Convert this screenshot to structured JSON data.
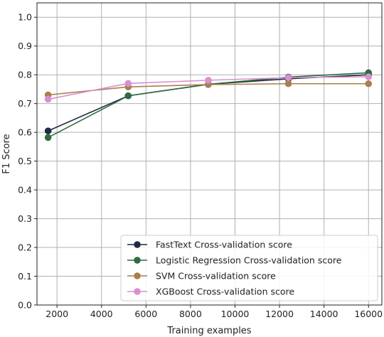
{
  "chart_data": {
    "type": "line",
    "title": "",
    "xlabel": "Training examples",
    "ylabel": "F1 Score",
    "x": [
      1600,
      5200,
      8800,
      12400,
      16000
    ],
    "xlim": [
      1100,
      16600
    ],
    "ylim": [
      0.0,
      1.05
    ],
    "xticks": [
      2000,
      4000,
      6000,
      8000,
      10000,
      12000,
      14000,
      16000
    ],
    "yticks": [
      0.0,
      0.1,
      0.2,
      0.3,
      0.4,
      0.5,
      0.6,
      0.7,
      0.8,
      0.9,
      1.0
    ],
    "xtick_labels": [
      "2000",
      "4000",
      "6000",
      "8000",
      "10000",
      "12000",
      "14000",
      "16000"
    ],
    "ytick_labels": [
      "0.0",
      "0.1",
      "0.2",
      "0.3",
      "0.4",
      "0.5",
      "0.6",
      "0.7",
      "0.8",
      "0.9",
      "1.0"
    ],
    "grid": true,
    "legend_position": "bottom-right",
    "series": [
      {
        "name": "FastText Cross-validation score",
        "color": "#1f2a44",
        "values": [
          0.605,
          0.727,
          0.767,
          0.786,
          0.8
        ]
      },
      {
        "name": "Logistic Regression Cross-validation score",
        "color": "#2e6b3e",
        "values": [
          0.582,
          0.727,
          0.767,
          0.792,
          0.807
        ]
      },
      {
        "name": "SVM Cross-validation score",
        "color": "#a97f4f",
        "values": [
          0.73,
          0.758,
          0.766,
          0.769,
          0.769
        ]
      },
      {
        "name": "XGBoost Cross-validation score",
        "color": "#d98fd0",
        "values": [
          0.715,
          0.77,
          0.781,
          0.79,
          0.793
        ]
      }
    ]
  }
}
